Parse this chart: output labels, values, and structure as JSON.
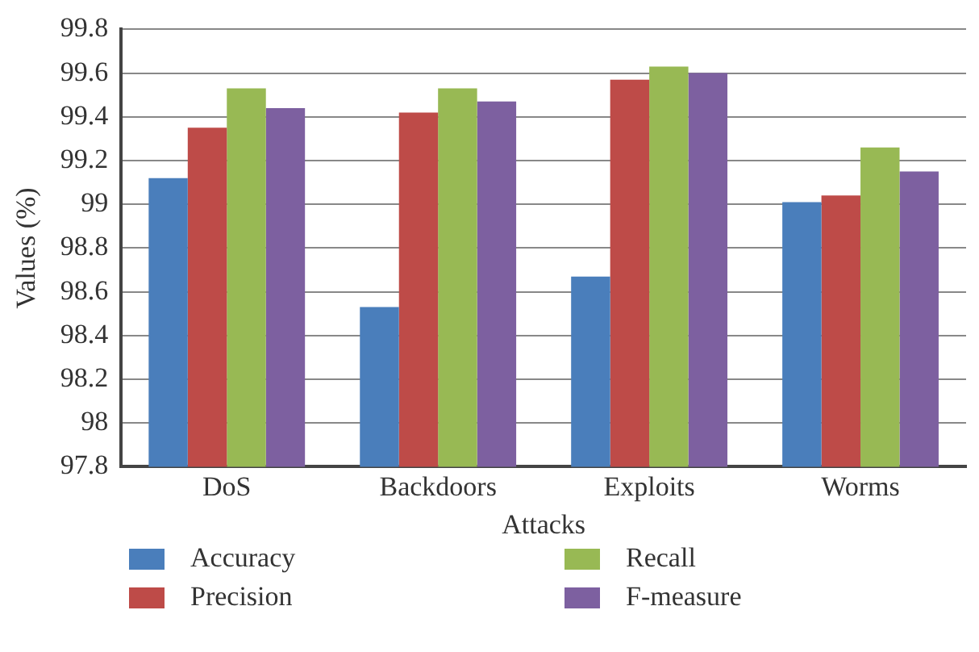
{
  "chart_data": {
    "type": "bar",
    "xlabel": "Attacks",
    "ylabel": "Values (%)",
    "categories": [
      "DoS",
      "Backdoors",
      "Exploits",
      "Worms"
    ],
    "series": [
      {
        "name": "Accuracy",
        "color": "#4a7ebb",
        "values": [
          99.12,
          98.53,
          98.67,
          99.01
        ]
      },
      {
        "name": "Precision",
        "color": "#be4b48",
        "values": [
          99.35,
          99.42,
          99.57,
          99.04
        ]
      },
      {
        "name": "Recall",
        "color": "#98b954",
        "values": [
          99.53,
          99.53,
          99.63,
          99.26
        ]
      },
      {
        "name": "F-measure",
        "color": "#7d60a0",
        "values": [
          99.44,
          99.47,
          99.6,
          99.15
        ]
      }
    ],
    "ylim": [
      97.8,
      99.8
    ],
    "yticks": [
      97.8,
      98,
      98.2,
      98.4,
      98.6,
      98.8,
      99,
      99.2,
      99.4,
      99.6,
      99.8
    ],
    "grid": "y",
    "legend": "bottom"
  }
}
